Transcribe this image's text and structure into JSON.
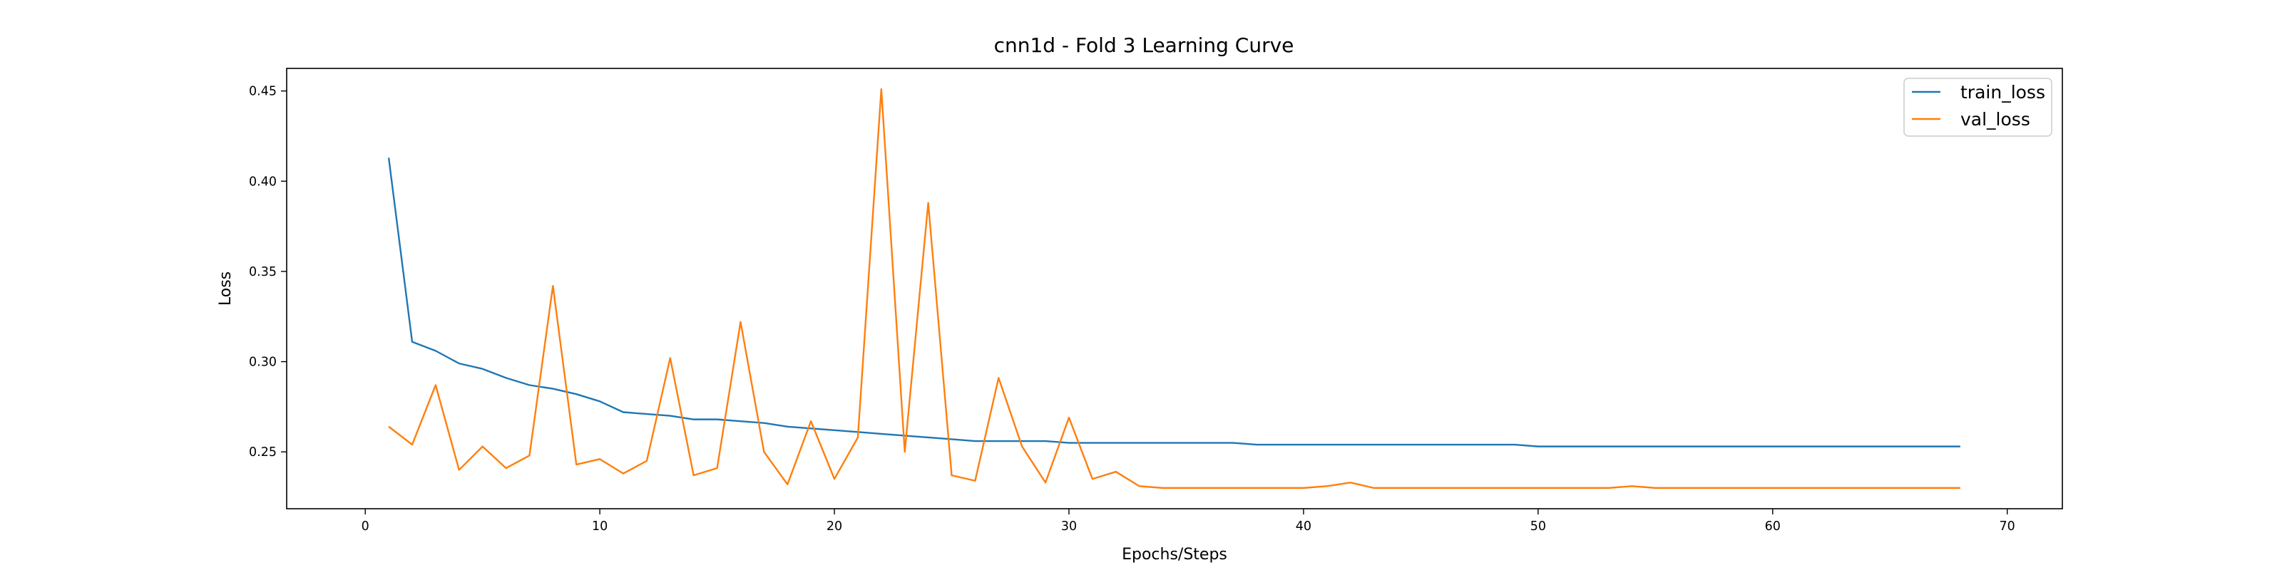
{
  "chart_data": {
    "type": "line",
    "title": "cnn1d - Fold 3 Learning Curve",
    "xlabel": "Epochs/Steps",
    "ylabel": "Loss",
    "xlim": [
      -3.35,
      72.35
    ],
    "ylim": [
      0.2185,
      0.4625
    ],
    "xticks": [
      0,
      10,
      20,
      30,
      40,
      50,
      60,
      70
    ],
    "yticks": [
      0.25,
      0.3,
      0.35,
      0.4,
      0.45
    ],
    "ytick_labels": [
      "0.25",
      "0.30",
      "0.35",
      "0.40",
      "0.45"
    ],
    "grid": false,
    "legend_position": "top-right",
    "x": [
      1,
      2,
      3,
      4,
      5,
      6,
      7,
      8,
      9,
      10,
      11,
      12,
      13,
      14,
      15,
      16,
      17,
      18,
      19,
      20,
      21,
      22,
      23,
      24,
      25,
      26,
      27,
      28,
      29,
      30,
      31,
      32,
      33,
      34,
      35,
      36,
      37,
      38,
      39,
      40,
      41,
      42,
      43,
      44,
      45,
      46,
      47,
      48,
      49,
      50,
      51,
      52,
      53,
      54,
      55,
      56,
      57,
      58,
      59,
      60,
      61,
      62,
      63,
      64,
      65,
      66,
      67,
      68
    ],
    "series": [
      {
        "name": "train_loss",
        "color": "#1f77b4",
        "values": [
          0.413,
          0.311,
          0.306,
          0.299,
          0.296,
          0.291,
          0.287,
          0.285,
          0.282,
          0.278,
          0.272,
          0.271,
          0.27,
          0.268,
          0.268,
          0.267,
          0.266,
          0.264,
          0.263,
          0.262,
          0.261,
          0.26,
          0.259,
          0.258,
          0.257,
          0.256,
          0.256,
          0.256,
          0.256,
          0.255,
          0.255,
          0.255,
          0.255,
          0.255,
          0.255,
          0.255,
          0.255,
          0.254,
          0.254,
          0.254,
          0.254,
          0.254,
          0.254,
          0.254,
          0.254,
          0.254,
          0.254,
          0.254,
          0.254,
          0.253,
          0.253,
          0.253,
          0.253,
          0.253,
          0.253,
          0.253,
          0.253,
          0.253,
          0.253,
          0.253,
          0.253,
          0.253,
          0.253,
          0.253,
          0.253,
          0.253,
          0.253,
          0.253
        ]
      },
      {
        "name": "val_loss",
        "color": "#ff7f0e",
        "values": [
          0.264,
          0.254,
          0.287,
          0.24,
          0.253,
          0.241,
          0.248,
          0.342,
          0.243,
          0.246,
          0.238,
          0.245,
          0.302,
          0.237,
          0.241,
          0.322,
          0.25,
          0.232,
          0.267,
          0.235,
          0.258,
          0.451,
          0.25,
          0.388,
          0.237,
          0.234,
          0.291,
          0.253,
          0.233,
          0.269,
          0.235,
          0.239,
          0.231,
          0.23,
          0.23,
          0.23,
          0.23,
          0.23,
          0.23,
          0.23,
          0.231,
          0.233,
          0.23,
          0.23,
          0.23,
          0.23,
          0.23,
          0.23,
          0.23,
          0.23,
          0.23,
          0.23,
          0.23,
          0.231,
          0.23,
          0.23,
          0.23,
          0.23,
          0.23,
          0.23,
          0.23,
          0.23,
          0.23,
          0.23,
          0.23,
          0.23,
          0.23,
          0.23
        ]
      }
    ]
  }
}
